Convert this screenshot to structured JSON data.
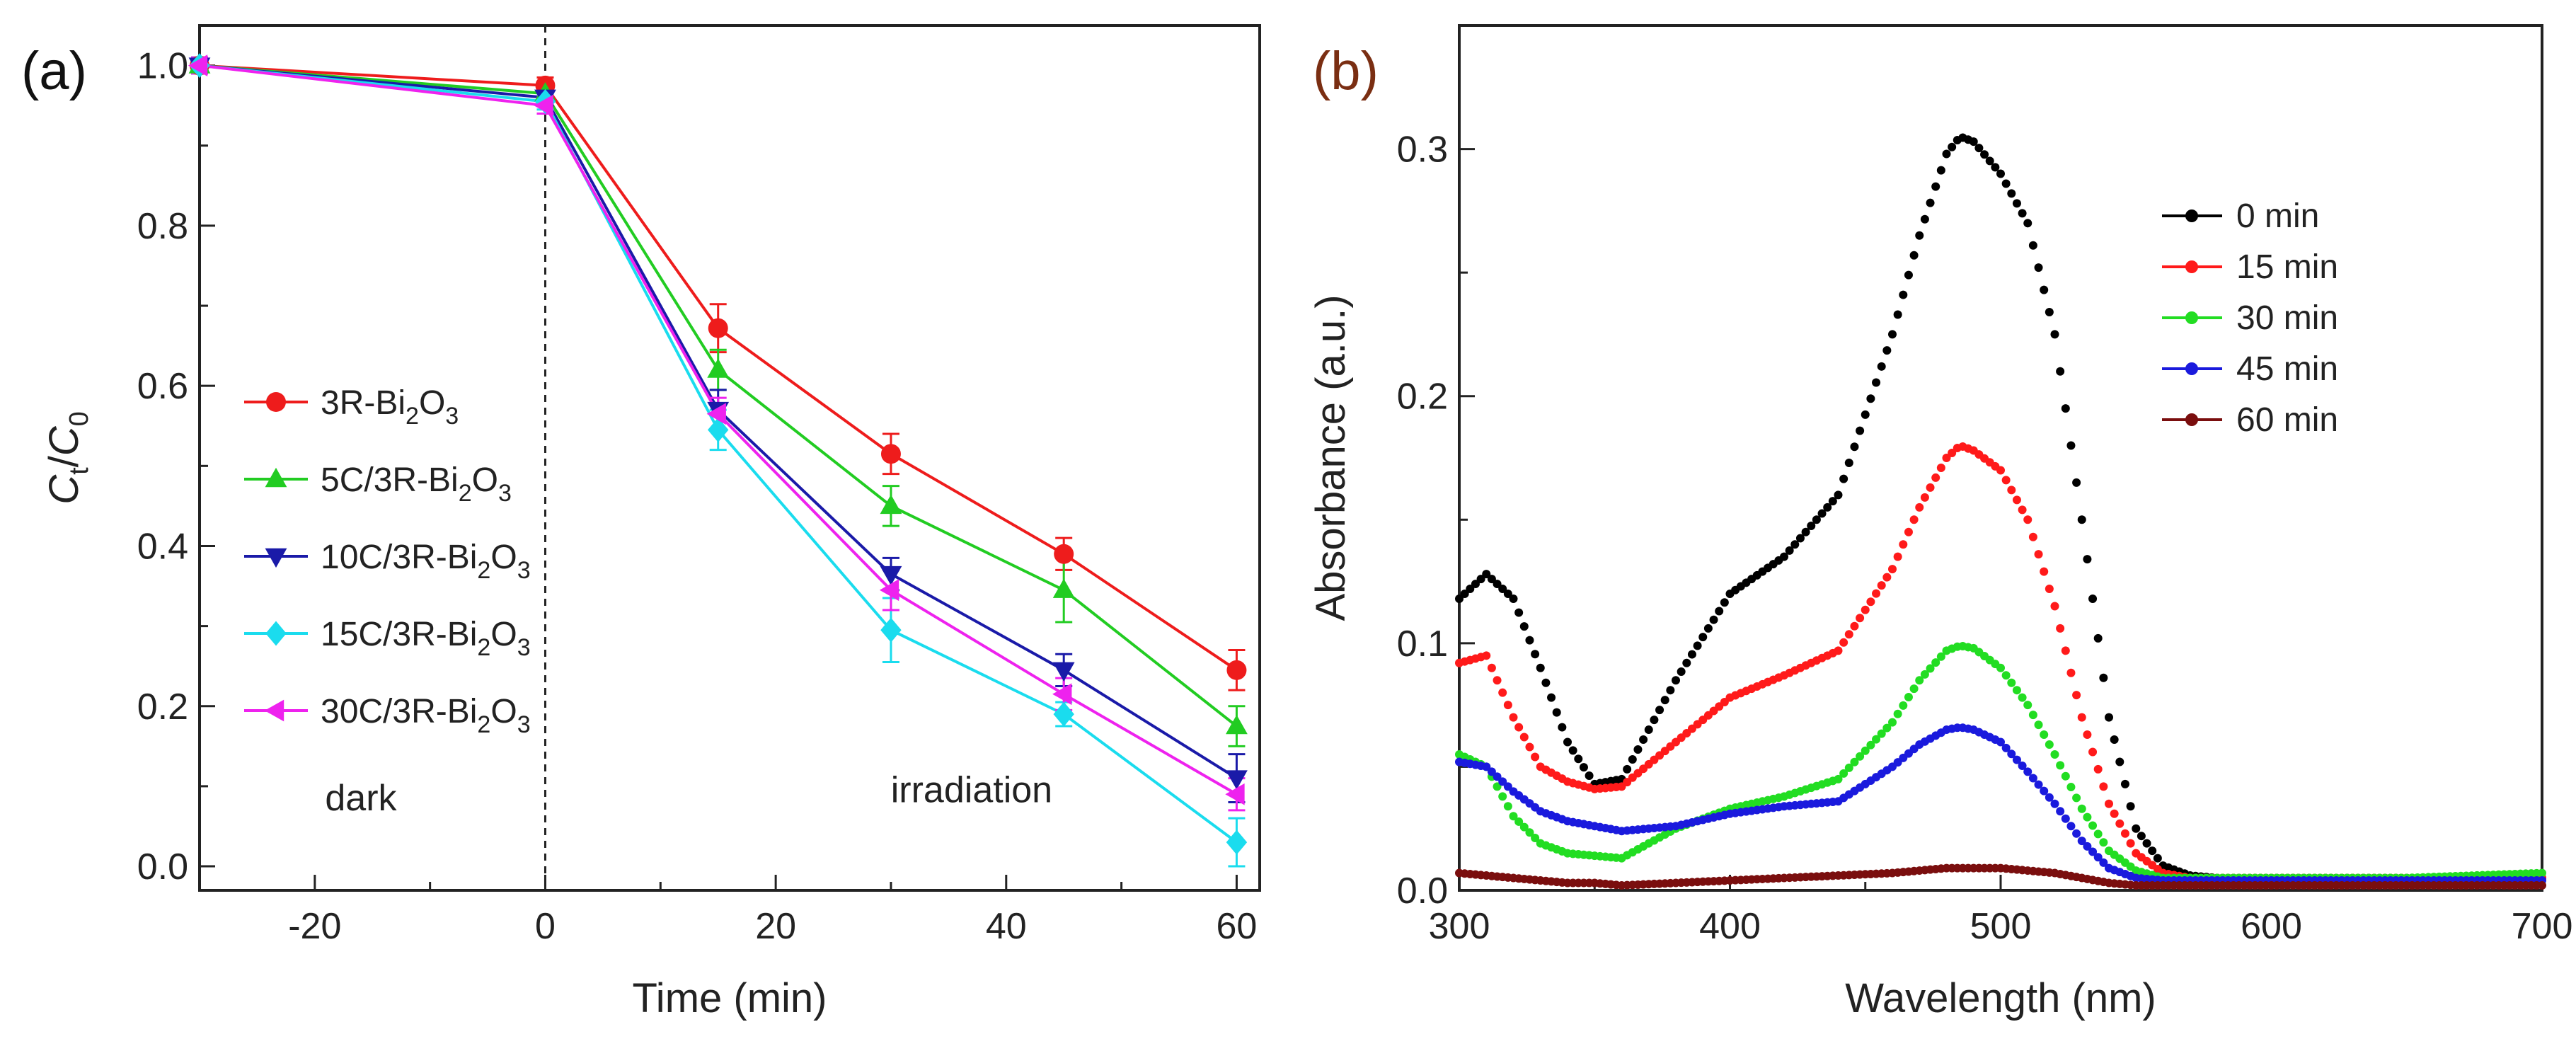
{
  "chart_data": [
    {
      "type": "line",
      "panel_label": "(a)",
      "title": "",
      "xlabel": "Time (min)",
      "ylabel": {
        "base1": "C",
        "sub1": "t",
        "sep": "/",
        "base2": "C",
        "sub2": "0"
      },
      "xlim": [
        -30,
        62
      ],
      "ylim": [
        -0.03,
        1.05
      ],
      "xticks": [
        -20,
        0,
        20,
        40,
        60
      ],
      "xtick_labels": [
        "-20",
        "0",
        "20",
        "40",
        "60"
      ],
      "yticks": [
        0.0,
        0.2,
        0.4,
        0.6,
        0.8,
        1.0
      ],
      "ytick_labels": [
        "0.0",
        "0.2",
        "0.4",
        "0.6",
        "0.8",
        "1.0"
      ],
      "x": [
        -30,
        0,
        15,
        30,
        45,
        60
      ],
      "legend_position": "center-left",
      "series": [
        {
          "name": "3R-Bi2O3",
          "legend": {
            "pre": "3R-Bi",
            "s1": "2",
            "mid": "O",
            "s2": "3"
          },
          "color": "#ee1c1c",
          "marker": "circle",
          "values": [
            1.0,
            0.975,
            0.672,
            0.515,
            0.39,
            0.245
          ],
          "errors": [
            0.01,
            0.01,
            0.03,
            0.025,
            0.02,
            0.025
          ]
        },
        {
          "name": "5C/3R-Bi2O3",
          "legend": {
            "pre": "5C/3R-Bi",
            "s1": "2",
            "mid": "O",
            "s2": "3"
          },
          "color": "#22cc22",
          "marker": "triangle-up",
          "values": [
            1.0,
            0.965,
            0.62,
            0.45,
            0.345,
            0.175
          ],
          "errors": [
            0.01,
            0.01,
            0.025,
            0.025,
            0.04,
            0.025
          ]
        },
        {
          "name": "10C/3R-Bi2O3",
          "legend": {
            "pre": "10C/3R-Bi",
            "s1": "2",
            "mid": "O",
            "s2": "3"
          },
          "color": "#1a1aa8",
          "marker": "triangle-down",
          "values": [
            1.0,
            0.96,
            0.57,
            0.365,
            0.245,
            0.11
          ],
          "errors": [
            0.01,
            0.01,
            0.025,
            0.02,
            0.02,
            0.03
          ]
        },
        {
          "name": "15C/3R-Bi2O3",
          "legend": {
            "pre": "15C/3R-Bi",
            "s1": "2",
            "mid": "O",
            "s2": "3"
          },
          "color": "#1adcee",
          "marker": "diamond",
          "values": [
            1.0,
            0.955,
            0.545,
            0.295,
            0.19,
            0.03
          ],
          "errors": [
            0.01,
            0.01,
            0.025,
            0.04,
            0.015,
            0.03
          ]
        },
        {
          "name": "30C/3R-Bi2O3",
          "legend": {
            "pre": "30C/3R-Bi",
            "s1": "2",
            "mid": "O",
            "s2": "3"
          },
          "color": "#ee22ee",
          "marker": "triangle-left",
          "values": [
            1.0,
            0.95,
            0.565,
            0.345,
            0.215,
            0.09
          ],
          "errors": [
            0.01,
            0.01,
            0.02,
            0.025,
            0.02,
            0.02
          ]
        }
      ],
      "annotations": [
        {
          "text": "dark",
          "x": -16,
          "y": 0.07
        },
        {
          "text": "irradiation",
          "x": 37,
          "y": 0.08
        }
      ],
      "reference_line": {
        "x": 0,
        "style": "dashed"
      }
    },
    {
      "type": "scatter",
      "panel_label": "(b)",
      "title": "",
      "xlabel": "Wavelength (nm)",
      "ylabel": "Absorbance (a.u.)",
      "xlim": [
        300,
        700
      ],
      "ylim": [
        0,
        0.35
      ],
      "xticks": [
        300,
        400,
        500,
        600,
        700
      ],
      "xtick_labels": [
        "300",
        "400",
        "500",
        "600",
        "700"
      ],
      "yticks": [
        0.0,
        0.1,
        0.2,
        0.3
      ],
      "ytick_labels": [
        "0.0",
        "0.1",
        "0.2",
        "0.3"
      ],
      "legend_position": "top-right",
      "sampling_step_nm": 2,
      "series": [
        {
          "name": "0 min",
          "color": "#000000",
          "x": [
            300,
            310,
            320,
            330,
            340,
            350,
            360,
            380,
            400,
            420,
            440,
            460,
            470,
            480,
            485,
            490,
            500,
            510,
            520,
            530,
            540,
            550,
            560,
            570,
            580,
            600,
            650,
            700
          ],
          "y": [
            0.118,
            0.128,
            0.118,
            0.09,
            0.06,
            0.043,
            0.045,
            0.085,
            0.12,
            0.135,
            0.16,
            0.225,
            0.265,
            0.298,
            0.305,
            0.303,
            0.29,
            0.27,
            0.225,
            0.15,
            0.07,
            0.025,
            0.01,
            0.006,
            0.005,
            0.005,
            0.005,
            0.005
          ]
        },
        {
          "name": "15 min",
          "color": "#ff1a1a",
          "x": [
            300,
            310,
            320,
            330,
            340,
            350,
            360,
            380,
            400,
            420,
            440,
            460,
            470,
            480,
            485,
            490,
            500,
            510,
            520,
            530,
            540,
            550,
            560,
            570,
            580,
            600,
            650,
            700
          ],
          "y": [
            0.092,
            0.095,
            0.07,
            0.05,
            0.044,
            0.041,
            0.042,
            0.06,
            0.078,
            0.087,
            0.097,
            0.13,
            0.155,
            0.175,
            0.18,
            0.178,
            0.17,
            0.15,
            0.115,
            0.07,
            0.035,
            0.015,
            0.007,
            0.005,
            0.005,
            0.005,
            0.005,
            0.005
          ]
        },
        {
          "name": "30 min",
          "color": "#22dd22",
          "x": [
            300,
            310,
            320,
            330,
            340,
            350,
            360,
            380,
            400,
            420,
            440,
            460,
            470,
            480,
            485,
            490,
            500,
            510,
            520,
            530,
            540,
            550,
            560,
            570,
            580,
            600,
            650,
            700
          ],
          "y": [
            0.055,
            0.05,
            0.03,
            0.019,
            0.015,
            0.014,
            0.013,
            0.025,
            0.033,
            0.038,
            0.045,
            0.068,
            0.085,
            0.097,
            0.099,
            0.098,
            0.09,
            0.075,
            0.055,
            0.033,
            0.016,
            0.008,
            0.005,
            0.005,
            0.005,
            0.005,
            0.005,
            0.007
          ]
        },
        {
          "name": "45 min",
          "color": "#1a1add",
          "x": [
            300,
            310,
            320,
            330,
            340,
            350,
            360,
            380,
            400,
            420,
            440,
            460,
            470,
            480,
            485,
            490,
            500,
            510,
            520,
            530,
            540,
            550,
            560,
            570,
            580,
            600,
            650,
            700
          ],
          "y": [
            0.052,
            0.05,
            0.04,
            0.032,
            0.028,
            0.026,
            0.024,
            0.026,
            0.031,
            0.034,
            0.036,
            0.05,
            0.059,
            0.065,
            0.066,
            0.065,
            0.06,
            0.048,
            0.035,
            0.02,
            0.009,
            0.005,
            0.004,
            0.004,
            0.004,
            0.004,
            0.004,
            0.004
          ]
        },
        {
          "name": "60 min",
          "color": "#7a0e0e",
          "x": [
            300,
            310,
            320,
            330,
            340,
            350,
            360,
            380,
            400,
            420,
            440,
            460,
            470,
            480,
            485,
            490,
            500,
            510,
            520,
            530,
            540,
            550,
            560,
            570,
            580,
            600,
            650,
            700
          ],
          "y": [
            0.007,
            0.006,
            0.005,
            0.004,
            0.003,
            0.003,
            0.002,
            0.003,
            0.004,
            0.005,
            0.006,
            0.007,
            0.008,
            0.009,
            0.009,
            0.009,
            0.009,
            0.008,
            0.007,
            0.005,
            0.003,
            0.002,
            0.002,
            0.002,
            0.002,
            0.002,
            0.002,
            0.002
          ]
        }
      ]
    }
  ]
}
